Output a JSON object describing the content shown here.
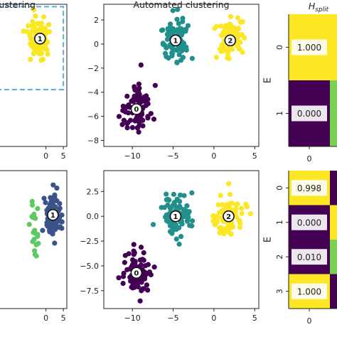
{
  "chart_data": [
    {
      "type": "scatter",
      "panel": "top-left",
      "title": "clustering",
      "xticks": [
        "0",
        "5"
      ],
      "yticks": [],
      "xlim": [
        -14,
        6
      ],
      "ylim": [
        -8.8,
        3.2
      ],
      "dashed_box": {
        "x": [
          -14,
          5
        ],
        "y": [
          -4,
          3
        ]
      },
      "colors": [
        "#f9e721"
      ],
      "clusters": [
        {
          "label": "1",
          "center": [
            -1.7,
            0.3
          ],
          "color": "#f9e721",
          "spread": [
            1.9,
            1.1
          ]
        }
      ]
    },
    {
      "type": "scatter",
      "panel": "top-middle",
      "title": "Automated clustering",
      "xticks": [
        "−10",
        "−5",
        "0",
        "5"
      ],
      "xtick_values": [
        -10,
        -5,
        0,
        5
      ],
      "yticks": [
        "2",
        "0",
        "−2",
        "−4",
        "−6",
        "−8"
      ],
      "ytick_values": [
        2,
        0,
        -2,
        -4,
        -6,
        -8
      ],
      "xlim": [
        -13.5,
        5.5
      ],
      "ylim": [
        -8.5,
        3.3
      ],
      "colors": [
        "#440154",
        "#21908d",
        "#fde725"
      ],
      "clusters": [
        {
          "label": "0",
          "center": [
            -9.5,
            -5.4
          ],
          "color": "#440154",
          "spread": [
            1.0,
            1.3
          ]
        },
        {
          "label": "1",
          "center": [
            -4.7,
            0.3
          ],
          "color": "#21908d",
          "spread": [
            1.1,
            1.0
          ]
        },
        {
          "label": "2",
          "center": [
            2.0,
            0.3
          ],
          "color": "#fde725",
          "spread": [
            1.0,
            1.0
          ]
        }
      ]
    },
    {
      "type": "heatmap",
      "panel": "top-right",
      "title": "H",
      "title_subscript": "split",
      "ylabel": "E",
      "row_labels": [
        "0",
        "1"
      ],
      "col_labels": [
        "0"
      ],
      "values": [
        [
          "1.000"
        ],
        [
          "0.000"
        ]
      ],
      "cell_colors": [
        "#fde725",
        "#440154"
      ],
      "edge_colors": [
        "#fde725",
        "#7ad151"
      ]
    },
    {
      "type": "scatter",
      "panel": "bottom-left",
      "title": "",
      "xticks": [
        "0",
        "5"
      ],
      "yticks": [],
      "xlim": [
        -14,
        6
      ],
      "ylim": [
        -8.8,
        4.6
      ],
      "colors": [
        "#3b528b",
        "#5ec962"
      ],
      "clusters": [
        {
          "label": "1",
          "center": [
            2.0,
            0.3
          ],
          "color": "#3b528b",
          "spread": [
            1.5,
            1.3
          ]
        }
      ],
      "partial_cluster": {
        "color": "#5ec962"
      }
    },
    {
      "type": "scatter",
      "panel": "bottom-middle",
      "title": "",
      "xticks": [
        "−10",
        "−5",
        "0",
        "5"
      ],
      "xtick_values": [
        -10,
        -5,
        0,
        5
      ],
      "yticks": [
        "2.5",
        "0.0",
        "−2.5",
        "−5.0",
        "−7.5"
      ],
      "ytick_values": [
        2.5,
        0.0,
        -2.5,
        -5.0,
        -7.5
      ],
      "xlim": [
        -13.5,
        5.5
      ],
      "ylim": [
        -9.3,
        4.6
      ],
      "colors": [
        "#440154",
        "#21908d",
        "#fde725"
      ],
      "clusters": [
        {
          "label": "0",
          "center": [
            -9.5,
            -5.7
          ],
          "color": "#440154",
          "spread": [
            1.0,
            1.4
          ]
        },
        {
          "label": "1",
          "center": [
            -4.7,
            0.0
          ],
          "color": "#21908d",
          "spread": [
            1.1,
            1.2
          ]
        },
        {
          "label": "2",
          "center": [
            1.8,
            0.0
          ],
          "color": "#fde725",
          "spread": [
            1.0,
            1.1
          ]
        }
      ]
    },
    {
      "type": "heatmap",
      "panel": "bottom-right",
      "title": "",
      "ylabel": "E",
      "row_labels": [
        "0",
        "1",
        "2",
        "3"
      ],
      "col_labels": [
        "0"
      ],
      "values": [
        [
          "0.998"
        ],
        [
          "0.000"
        ],
        [
          "0.010"
        ],
        [
          "1.000"
        ]
      ],
      "cell_colors": [
        "#fde725",
        "#440154",
        "#440154",
        "#fde725"
      ],
      "edge_colors": [
        "#440154",
        "#fde725",
        "#7ad151",
        "#440154"
      ]
    }
  ]
}
